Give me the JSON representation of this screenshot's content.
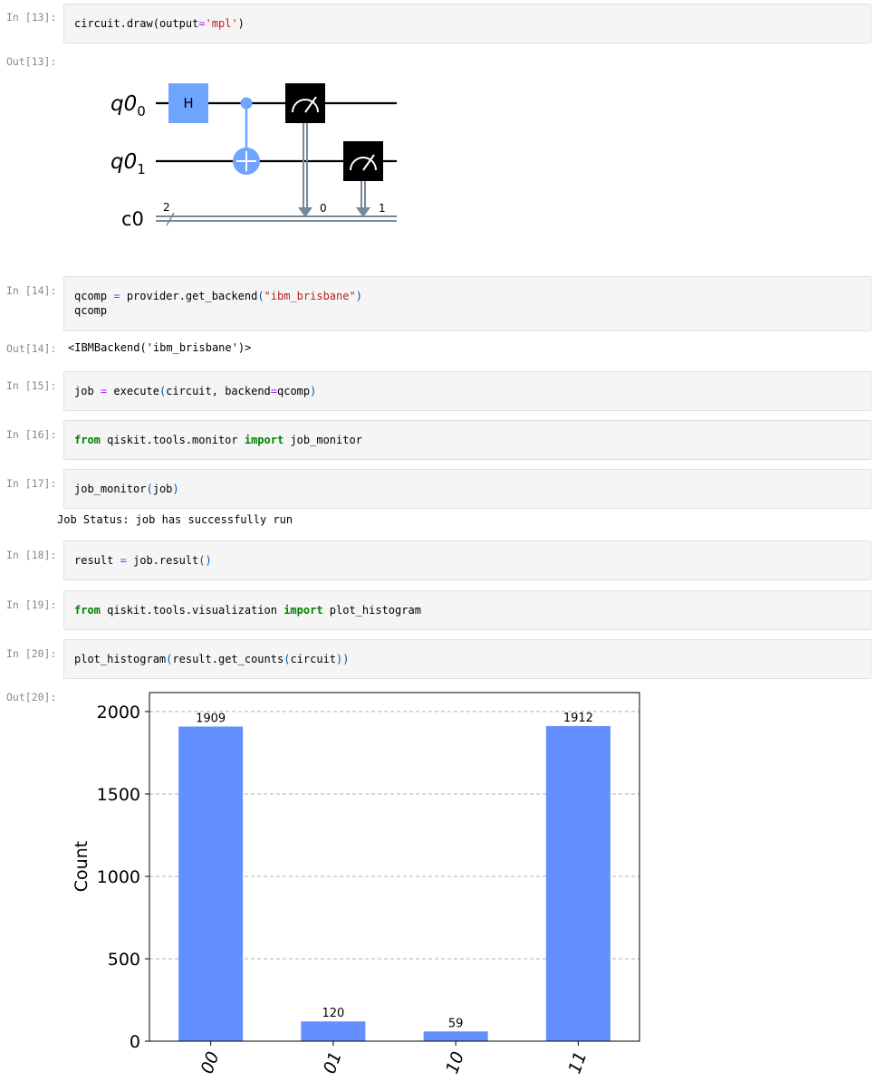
{
  "cells": [
    {
      "in_prompt": "In [13]:",
      "out_prompt": "Out[13]:",
      "code": {
        "obj": "circuit",
        "dot": ".",
        "fn": "draw",
        "p1": "(",
        "arg": "output",
        "eq": "=",
        "str": "'mpl'",
        "p2": ")"
      }
    },
    {
      "in_prompt": "In [14]:",
      "out_prompt": "Out[14]:",
      "code": {
        "var": "qcomp ",
        "eq": "=",
        "rest": " provider.get_backend",
        "p1": "(",
        "str": "\"ibm_brisbane\"",
        "p2": ")",
        "line2": "qcomp"
      },
      "output": "<IBMBackend('ibm_brisbane')>"
    },
    {
      "in_prompt": "In [15]:",
      "code": {
        "var": "job ",
        "eq": "=",
        "rest": " execute",
        "p1": "(",
        "args": "circuit, backend",
        "eq2": "=",
        "arg2": "qcomp",
        "p2": ")"
      }
    },
    {
      "in_prompt": "In [16]:",
      "code": {
        "kw1": "from",
        "mod": " qiskit.tools.monitor ",
        "kw2": "import",
        "name": " job_monitor"
      }
    },
    {
      "in_prompt": "In [17]:",
      "code": {
        "fn": "job_monitor",
        "p1": "(",
        "arg": "job",
        "p2": ")"
      },
      "output": "Job Status: job has successfully run"
    },
    {
      "in_prompt": "In [18]:",
      "code": {
        "var": "result ",
        "eq": "=",
        "rest": " job.result",
        "p": "()"
      }
    },
    {
      "in_prompt": "In [19]:",
      "code": {
        "kw1": "from",
        "mod": " qiskit.tools.visualization ",
        "kw2": "import",
        "name": " plot_histogram"
      }
    },
    {
      "in_prompt": "In [20]:",
      "out_prompt": "Out[20]:",
      "code": {
        "fn": "plot_histogram",
        "p1": "(",
        "mid": "result.get_counts",
        "p2": "(",
        "arg": "circuit",
        "p3": "))"
      }
    }
  ],
  "circuit": {
    "qubit_labels": [
      {
        "base": "q0",
        "sub": "0"
      },
      {
        "base": "q0",
        "sub": "1"
      }
    ],
    "classical_label": "c0",
    "classical_width": "2",
    "gates": [
      {
        "type": "H",
        "label": "H"
      },
      {
        "type": "cx"
      },
      {
        "type": "measure",
        "bit": "0"
      },
      {
        "type": "measure",
        "bit": "1"
      }
    ],
    "colors": {
      "gate": "#6fa4ff",
      "measure": "#000000",
      "classical": "#778899",
      "wire": "#000000"
    }
  },
  "chart_data": {
    "type": "bar",
    "categories": [
      "00",
      "01",
      "10",
      "11"
    ],
    "values": [
      1909,
      120,
      59,
      1912
    ],
    "ylabel": "Count",
    "ylim": [
      0,
      2115
    ],
    "yticks": [
      0,
      500,
      1000,
      1500,
      2000
    ],
    "grid": true,
    "bar_color": "#648fff"
  }
}
